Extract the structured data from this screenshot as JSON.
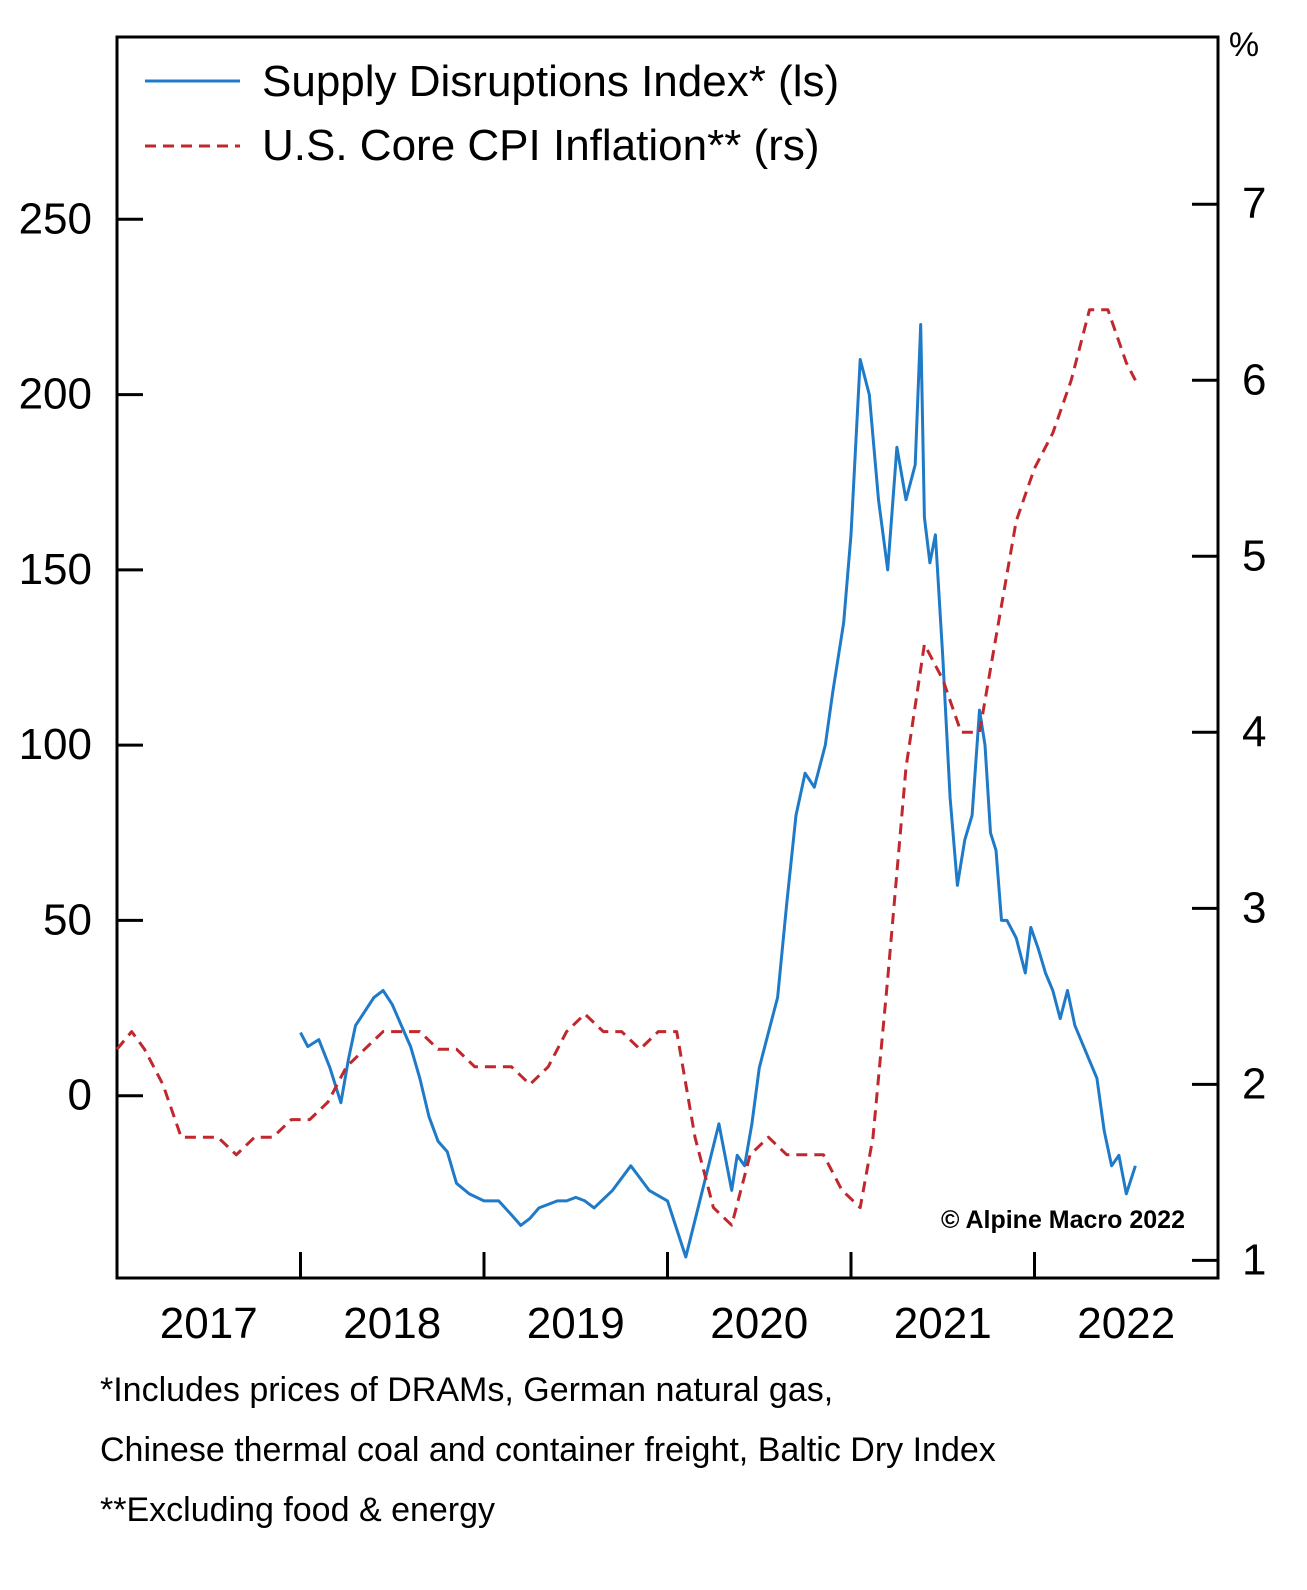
{
  "chart_data": {
    "type": "line",
    "legend": [
      {
        "label": "Supply Disruptions Index* (ls)",
        "color": "#1f7bc8",
        "style": "solid"
      },
      {
        "label": "U.S. Core CPI Inflation** (rs)",
        "color": "#c0282e",
        "style": "dashed"
      }
    ],
    "legend_position": "top-left",
    "grid": false,
    "x_tick_labels": [
      "2017",
      "2018",
      "2019",
      "2020",
      "2021",
      "2022"
    ],
    "x_tick_dividers": [
      2017.5,
      2018.5,
      2019.5,
      2020.5,
      2021.5
    ],
    "xlim": [
      2016.5,
      2022.5
    ],
    "left_axis": {
      "ticks": [
        0,
        50,
        100,
        150,
        200,
        250
      ],
      "ylim": [
        -52,
        302
      ]
    },
    "right_axis": {
      "unit_label": "%",
      "ticks": [
        1,
        2,
        3,
        4,
        5,
        6,
        7
      ],
      "ylim": [
        0.9,
        7.95
      ]
    },
    "series": [
      {
        "name": "Supply Disruptions Index* (ls)",
        "axis": "left",
        "color": "#1f7bc8",
        "dash": "solid",
        "x": [
          2017.5,
          2017.54,
          2017.6,
          2017.66,
          2017.72,
          2017.76,
          2017.8,
          2017.85,
          2017.9,
          2017.95,
          2018.0,
          2018.05,
          2018.1,
          2018.15,
          2018.2,
          2018.25,
          2018.3,
          2018.35,
          2018.42,
          2018.5,
          2018.58,
          2018.65,
          2018.7,
          2018.75,
          2018.8,
          2018.85,
          2018.9,
          2018.95,
          2019.0,
          2019.05,
          2019.1,
          2019.2,
          2019.3,
          2019.4,
          2019.5,
          2019.6,
          2019.7,
          2019.78,
          2019.85,
          2019.88,
          2019.92,
          2019.96,
          2020.0,
          2020.05,
          2020.1,
          2020.15,
          2020.2,
          2020.25,
          2020.3,
          2020.36,
          2020.4,
          2020.46,
          2020.5,
          2020.55,
          2020.6,
          2020.65,
          2020.7,
          2020.75,
          2020.8,
          2020.85,
          2020.88,
          2020.9,
          2020.93,
          2020.96,
          2021.0,
          2021.04,
          2021.08,
          2021.12,
          2021.16,
          2021.2,
          2021.23,
          2021.26,
          2021.29,
          2021.32,
          2021.35,
          2021.4,
          2021.45,
          2021.48,
          2021.52,
          2021.56,
          2021.6,
          2021.64,
          2021.68,
          2021.72,
          2021.76,
          2021.8,
          2021.84,
          2021.88,
          2021.92,
          2021.96,
          2022.0,
          2022.05
        ],
        "y": [
          18,
          14,
          16,
          8,
          -2,
          10,
          20,
          24,
          28,
          30,
          26,
          20,
          14,
          5,
          -6,
          -13,
          -16,
          -25,
          -28,
          -30,
          -30,
          -34,
          -37,
          -35,
          -32,
          -31,
          -30,
          -30,
          -29,
          -30,
          -32,
          -27,
          -20,
          -27,
          -30,
          -46,
          -25,
          -8,
          -27,
          -17,
          -20,
          -8,
          8,
          18,
          28,
          55,
          80,
          92,
          88,
          100,
          115,
          135,
          160,
          210,
          200,
          170,
          150,
          185,
          170,
          180,
          220,
          165,
          152,
          160,
          125,
          85,
          60,
          73,
          80,
          110,
          100,
          75,
          70,
          50,
          50,
          45,
          35,
          48,
          42,
          35,
          30,
          22,
          30,
          20,
          15,
          10,
          5,
          -10,
          -20,
          -17,
          -28,
          -20
        ]
      },
      {
        "name": "U.S. Core CPI Inflation** (rs)",
        "axis": "right",
        "color": "#c0282e",
        "dash": "dashed",
        "x": [
          2016.5,
          2016.58,
          2016.65,
          2016.75,
          2016.85,
          2016.95,
          2017.05,
          2017.15,
          2017.25,
          2017.35,
          2017.45,
          2017.55,
          2017.65,
          2017.75,
          2017.85,
          2017.95,
          2018.05,
          2018.15,
          2018.25,
          2018.35,
          2018.45,
          2018.55,
          2018.65,
          2018.75,
          2018.85,
          2018.95,
          2019.05,
          2019.15,
          2019.25,
          2019.35,
          2019.45,
          2019.55,
          2019.65,
          2019.75,
          2019.85,
          2019.95,
          2020.05,
          2020.15,
          2020.25,
          2020.35,
          2020.45,
          2020.55,
          2020.62,
          2020.7,
          2020.8,
          2020.9,
          2021.0,
          2021.1,
          2021.2,
          2021.3,
          2021.4,
          2021.5,
          2021.6,
          2021.7,
          2021.8,
          2021.9,
          2022.0,
          2022.05
        ],
        "y": [
          2.2,
          2.3,
          2.2,
          2.0,
          1.7,
          1.7,
          1.7,
          1.6,
          1.7,
          1.7,
          1.8,
          1.8,
          1.9,
          2.1,
          2.2,
          2.3,
          2.3,
          2.3,
          2.2,
          2.2,
          2.1,
          2.1,
          2.1,
          2.0,
          2.1,
          2.3,
          2.4,
          2.3,
          2.3,
          2.2,
          2.3,
          2.3,
          1.7,
          1.3,
          1.2,
          1.6,
          1.7,
          1.6,
          1.6,
          1.6,
          1.4,
          1.3,
          1.7,
          2.6,
          3.8,
          4.5,
          4.3,
          4.0,
          4.0,
          4.6,
          5.2,
          5.5,
          5.7,
          6.0,
          6.4,
          6.4,
          6.1,
          6.0
        ]
      }
    ]
  },
  "credit": "© Alpine Macro 2022",
  "footnotes": [
    "*Includes prices of DRAMs, German natural gas,",
    "Chinese thermal coal and container freight, Baltic Dry Index",
    "**Excluding food & energy"
  ]
}
